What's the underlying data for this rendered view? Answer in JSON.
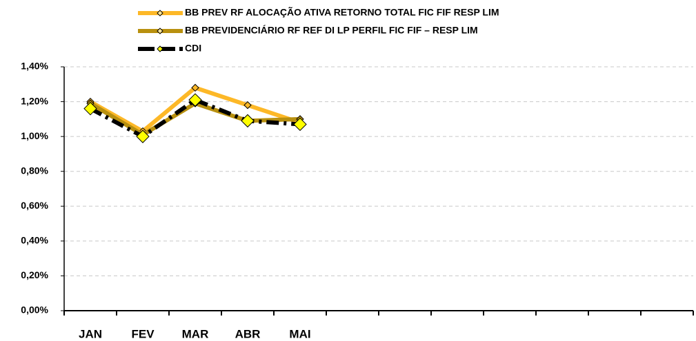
{
  "chart_data": {
    "type": "line",
    "categories": [
      "JAN",
      "FEV",
      "MAR",
      "ABR",
      "MAI",
      null,
      null,
      null,
      null,
      null,
      null,
      null
    ],
    "series": [
      {
        "name": "BB PREV RF ALOCAÇÃO ATIVA RETORNO TOTAL FIC FIF RESP LIM",
        "color": "#FDB827",
        "values": [
          1.2,
          1.03,
          1.28,
          1.18,
          1.08,
          null,
          null,
          null,
          null,
          null,
          null,
          null
        ]
      },
      {
        "name": "BB PREVIDENCIÁRIO RF REF DI LP PERFIL FIC FIF – RESP LIM",
        "color": "#B8900F",
        "values": [
          1.19,
          1.01,
          1.19,
          1.09,
          1.1,
          null,
          null,
          null,
          null,
          null,
          null,
          null
        ]
      },
      {
        "name": "CDI",
        "color": "#000000",
        "values": [
          1.16,
          1.0,
          1.21,
          1.09,
          1.07,
          null,
          null,
          null,
          null,
          null,
          null,
          null
        ]
      }
    ],
    "ylim": [
      0,
      1.4
    ],
    "yticks": [
      {
        "value": 0,
        "label": "0,00%"
      },
      {
        "value": 0.2,
        "label": "0,20%"
      },
      {
        "value": 0.4,
        "label": "0,40%"
      },
      {
        "value": 0.6,
        "label": "0,60%"
      },
      {
        "value": 0.8,
        "label": "0,80%"
      },
      {
        "value": 1.0,
        "label": "1,00%"
      },
      {
        "value": 1.2,
        "label": "1,20%"
      },
      {
        "value": 1.4,
        "label": "1,40%"
      }
    ],
    "grid": true
  }
}
